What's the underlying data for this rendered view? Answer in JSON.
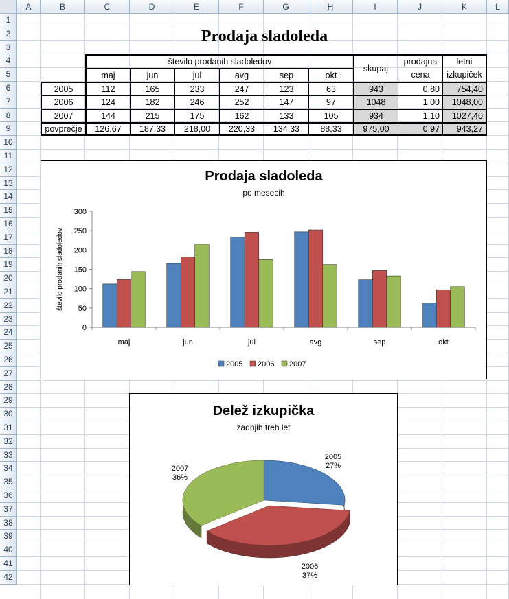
{
  "columns": [
    "A",
    "B",
    "C",
    "D",
    "E",
    "F",
    "G",
    "H",
    "I",
    "J",
    "K",
    "L"
  ],
  "rows": [
    "1",
    "2",
    "3",
    "4",
    "5",
    "6",
    "7",
    "8",
    "9",
    "10",
    "11",
    "12",
    "13",
    "14",
    "15",
    "16",
    "17",
    "18",
    "19",
    "20",
    "21",
    "22",
    "23",
    "24",
    "25",
    "26",
    "27",
    "28",
    "29",
    "30",
    "31",
    "32",
    "33",
    "34",
    "35",
    "36",
    "37",
    "38",
    "39",
    "40",
    "41",
    "42"
  ],
  "sheet_title": "Prodaja sladoleda",
  "table": {
    "group_header": "število prodanih sladoledov",
    "months": [
      "maj",
      "jun",
      "jul",
      "avg",
      "sep",
      "okt"
    ],
    "skupaj_label": "skupaj",
    "cena_label_1": "prodajna",
    "cena_label_2": "cena",
    "izkupicek_label_1": "letni",
    "izkupicek_label_2": "izkupiček",
    "rows": [
      {
        "label": "2005",
        "values": [
          "112",
          "165",
          "233",
          "247",
          "123",
          "63"
        ],
        "skupaj": "943",
        "cena": "0,80",
        "izkupicek": "754,40"
      },
      {
        "label": "2006",
        "values": [
          "124",
          "182",
          "246",
          "252",
          "147",
          "97"
        ],
        "skupaj": "1048",
        "cena": "1,00",
        "izkupicek": "1048,00"
      },
      {
        "label": "2007",
        "values": [
          "144",
          "215",
          "175",
          "162",
          "133",
          "105"
        ],
        "skupaj": "934",
        "cena": "1,10",
        "izkupicek": "1027,40"
      },
      {
        "label": "povprečje",
        "values": [
          "126,67",
          "187,33",
          "218,00",
          "220,33",
          "134,33",
          "88,33"
        ],
        "skupaj": "975,00",
        "cena": "0,97",
        "izkupicek": "943,27"
      }
    ]
  },
  "chart_data": [
    {
      "type": "bar",
      "title": "Prodaja sladoleda",
      "subtitle": "po mesecih",
      "xlabel": "",
      "ylabel": "število prodanih sladoledov",
      "categories": [
        "maj",
        "jun",
        "jul",
        "avg",
        "sep",
        "okt"
      ],
      "ylim": [
        0,
        300
      ],
      "yticks": [
        0,
        50,
        100,
        150,
        200,
        250,
        300
      ],
      "series": [
        {
          "name": "2005",
          "color": "#4f81bd",
          "values": [
            112,
            165,
            233,
            247,
            123,
            63
          ]
        },
        {
          "name": "2006",
          "color": "#c0504d",
          "values": [
            124,
            182,
            246,
            252,
            147,
            97
          ]
        },
        {
          "name": "2007",
          "color": "#9bbb59",
          "values": [
            144,
            215,
            175,
            162,
            133,
            105
          ]
        }
      ],
      "legend": "bottom"
    },
    {
      "type": "pie",
      "title": "Delež izkupička",
      "subtitle": "zadnjih treh let",
      "slices": [
        {
          "label": "2005",
          "value": 27,
          "pct": "27%",
          "color": "#4f81bd"
        },
        {
          "label": "2006",
          "value": 37,
          "pct": "37%",
          "color": "#c0504d"
        },
        {
          "label": "2007",
          "value": 36,
          "pct": "36%",
          "color": "#9bbb59"
        }
      ]
    }
  ]
}
